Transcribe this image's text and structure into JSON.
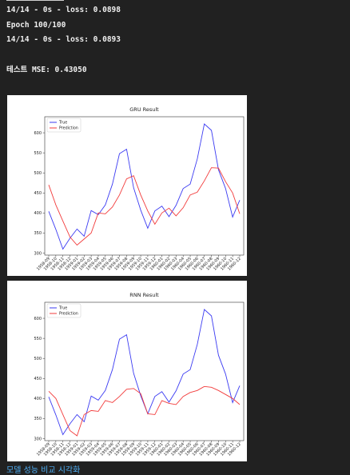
{
  "output": {
    "lines": [
      "14/14 - 0s - loss: 0.0898",
      "Epoch 100/100",
      "14/14 - 0s - loss: 0.0893",
      "테스트 MSE: 0.43050"
    ]
  },
  "chart_data": [
    {
      "type": "line",
      "title": "GRU Result",
      "x": [
        "1958-09",
        "1958-10",
        "1958-11",
        "1958-12",
        "1959-01",
        "1959-02",
        "1959-03",
        "1959-04",
        "1959-05",
        "1959-06",
        "1959-07",
        "1959-08",
        "1959-09",
        "1959-10",
        "1959-11",
        "1959-12",
        "1960-01",
        "1960-02",
        "1960-03",
        "1960-04",
        "1960-05",
        "1960-06",
        "1960-07",
        "1960-08",
        "1960-09",
        "1960-10",
        "1960-11",
        "1960-12"
      ],
      "ylim": [
        295,
        640
      ],
      "yticks": [
        300,
        350,
        400,
        450,
        500,
        550,
        600
      ],
      "legend": "top-left",
      "series": [
        {
          "name": "True",
          "color": "#3b3bf2",
          "values": [
            404,
            359,
            310,
            337,
            360,
            342,
            406,
            396,
            420,
            472,
            548,
            559,
            463,
            407,
            362,
            405,
            417,
            391,
            419,
            461,
            472,
            535,
            622,
            606,
            508,
            461,
            390,
            432
          ]
        },
        {
          "name": "Prediction",
          "color": "#f23b3b",
          "values": [
            470,
            420,
            380,
            340,
            320,
            335,
            350,
            400,
            398,
            415,
            445,
            485,
            493,
            445,
            405,
            372,
            400,
            412,
            393,
            413,
            445,
            452,
            480,
            513,
            512,
            478,
            450,
            398
          ]
        }
      ]
    },
    {
      "type": "line",
      "title": "RNN Result",
      "x": [
        "1958-09",
        "1958-10",
        "1958-11",
        "1958-12",
        "1959-01",
        "1959-02",
        "1959-03",
        "1959-04",
        "1959-05",
        "1959-06",
        "1959-07",
        "1959-08",
        "1959-09",
        "1959-10",
        "1959-11",
        "1959-12",
        "1960-01",
        "1960-02",
        "1960-03",
        "1960-04",
        "1960-05",
        "1960-06",
        "1960-07",
        "1960-08",
        "1960-09",
        "1960-10",
        "1960-11",
        "1960-12"
      ],
      "ylim": [
        295,
        640
      ],
      "yticks": [
        300,
        350,
        400,
        450,
        500,
        550,
        600
      ],
      "legend": "top-left",
      "series": [
        {
          "name": "True",
          "color": "#3b3bf2",
          "values": [
            404,
            359,
            310,
            337,
            360,
            342,
            406,
            396,
            420,
            472,
            548,
            559,
            463,
            407,
            362,
            405,
            417,
            391,
            419,
            461,
            472,
            535,
            622,
            606,
            508,
            461,
            390,
            432
          ]
        },
        {
          "name": "Prediction",
          "color": "#f23b3b",
          "values": [
            418,
            400,
            360,
            320,
            307,
            360,
            370,
            368,
            395,
            390,
            405,
            423,
            425,
            412,
            362,
            360,
            395,
            388,
            385,
            405,
            415,
            420,
            430,
            428,
            420,
            410,
            400,
            385
          ]
        }
      ]
    }
  ],
  "footer": {
    "link_text": "모델 성능 비교 시각화"
  }
}
